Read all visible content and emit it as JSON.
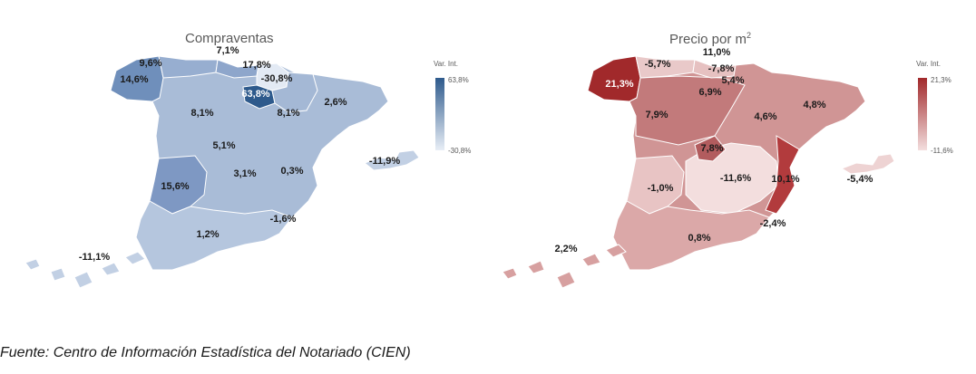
{
  "maps": [
    {
      "title": "Compraventas",
      "legend": {
        "title": "Var. Int.",
        "max": "63,8%",
        "min": "-30,8%",
        "color_high": "#2e5a8c",
        "color_low": "#e8eef6"
      },
      "base_color": "#a9bcd7",
      "labels": [
        "7,1%",
        "9,6%",
        "17,8%",
        "-30,8%",
        "14,6%",
        "63,8%",
        "8,1%",
        "8,1%",
        "2,6%",
        "5,1%",
        "3,1%",
        "0,3%",
        "15,6%",
        "-11,9%",
        "-1,6%",
        "1,2%",
        "-11,1%"
      ]
    },
    {
      "title": "Precio por m",
      "title_sup": "2",
      "legend": {
        "title": "Var. Int.",
        "max": "21,3%",
        "min": "-11,6%",
        "color_high": "#a1292b",
        "color_low": "#f3dede"
      },
      "base_color": "#d9a3a3",
      "labels": [
        "11,0%",
        "-5,7%",
        "-7,8%",
        "21,3%",
        "5,4%",
        "6,9%",
        "7,9%",
        "4,6%",
        "4,8%",
        "7,8%",
        "-1,0%",
        "-11,6%",
        "10,1%",
        "-5,4%",
        "-2,4%",
        "2,2%",
        "0,8%"
      ]
    }
  ],
  "source": "Fuente: Centro de Información Estadística del Notariado (CIEN)"
}
